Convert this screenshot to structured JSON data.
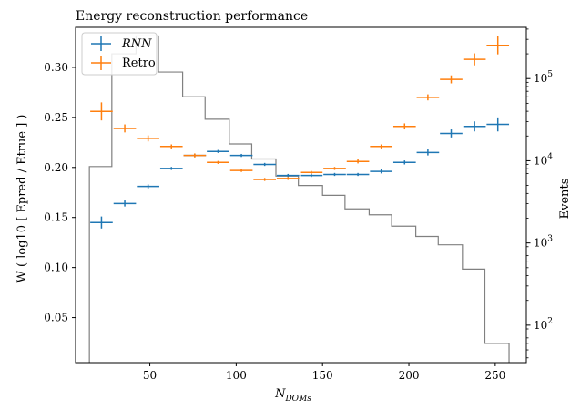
{
  "chart_data": {
    "type": "errorbar+step",
    "title": "Energy reconstruction performance",
    "xlabel": "N",
    "xlabel_sub": "DOMs",
    "ylabel": "W ( log10 [ Epred / Etrue ] )",
    "y2label": "Events",
    "xlim": [
      7,
      268
    ],
    "ylim": [
      0.005,
      0.34
    ],
    "y2lim": [
      35,
      420000
    ],
    "y2scale": "log",
    "x_ticks": [
      50,
      100,
      150,
      200,
      250
    ],
    "y_ticks": [
      0.05,
      0.1,
      0.15,
      0.2,
      0.25,
      0.3
    ],
    "y_tick_labels": [
      "0.05",
      "0.10",
      "0.15",
      "0.20",
      "0.25",
      "0.30"
    ],
    "y2_ticks": [
      100,
      1000,
      10000,
      100000
    ],
    "y2_tick_labels": [
      "10",
      "10",
      "10",
      "10"
    ],
    "y2_tick_exponents": [
      "2",
      "3",
      "4",
      "5"
    ],
    "legend": {
      "placement": "top-left",
      "entries": [
        "RNN",
        "Retro"
      ]
    },
    "series": [
      {
        "name": "RNN",
        "color": "#1f77b4",
        "x": [
          22.0,
          35.5,
          49.0,
          62.5,
          76.0,
          89.5,
          103.0,
          116.5,
          130.0,
          143.5,
          157.0,
          170.5,
          184.0,
          197.5,
          211.0,
          224.5,
          238.0,
          251.5
        ],
        "xerr": [
          6.5,
          6.5,
          6.5,
          6.5,
          6.5,
          6.5,
          6.5,
          6.5,
          6.5,
          6.5,
          6.5,
          6.5,
          6.5,
          6.5,
          6.5,
          6.5,
          6.5,
          6.5
        ],
        "y": [
          0.145,
          0.164,
          0.181,
          0.199,
          0.212,
          0.216,
          0.212,
          0.203,
          0.192,
          0.192,
          0.193,
          0.193,
          0.196,
          0.205,
          0.215,
          0.234,
          0.241,
          0.243
        ],
        "yerr": [
          0.006,
          0.003,
          0.002,
          0.0015,
          0.0015,
          0.0015,
          0.0015,
          0.0015,
          0.0015,
          0.0015,
          0.0015,
          0.0015,
          0.002,
          0.002,
          0.003,
          0.004,
          0.005,
          0.007
        ]
      },
      {
        "name": "Retro",
        "color": "#ff7f0e",
        "x": [
          22.0,
          35.5,
          49.0,
          62.5,
          76.0,
          89.5,
          103.0,
          116.5,
          130.0,
          143.5,
          157.0,
          170.5,
          184.0,
          197.5,
          211.0,
          224.5,
          238.0,
          251.5
        ],
        "xerr": [
          6.5,
          6.5,
          6.5,
          6.5,
          6.5,
          6.5,
          6.5,
          6.5,
          6.5,
          6.5,
          6.5,
          6.5,
          6.5,
          6.5,
          6.5,
          6.5,
          6.5,
          6.5
        ],
        "y": [
          0.256,
          0.239,
          0.229,
          0.221,
          0.212,
          0.205,
          0.197,
          0.188,
          0.189,
          0.195,
          0.199,
          0.206,
          0.221,
          0.241,
          0.27,
          0.288,
          0.308,
          0.322
        ],
        "yerr": [
          0.009,
          0.004,
          0.003,
          0.002,
          0.002,
          0.0015,
          0.0015,
          0.0015,
          0.0015,
          0.0015,
          0.0015,
          0.002,
          0.002,
          0.003,
          0.003,
          0.004,
          0.006,
          0.009
        ]
      }
    ],
    "events_histogram": {
      "color": "#808080",
      "bin_edges": [
        15,
        28,
        42,
        55,
        69,
        82,
        96,
        109,
        123,
        136,
        150,
        163,
        177,
        190,
        204,
        217,
        231,
        244,
        258
      ],
      "counts": [
        8500,
        200000,
        330000,
        120000,
        60000,
        32000,
        16000,
        10500,
        6500,
        5000,
        3800,
        2600,
        2200,
        1600,
        1200,
        950,
        480,
        60
      ]
    }
  }
}
